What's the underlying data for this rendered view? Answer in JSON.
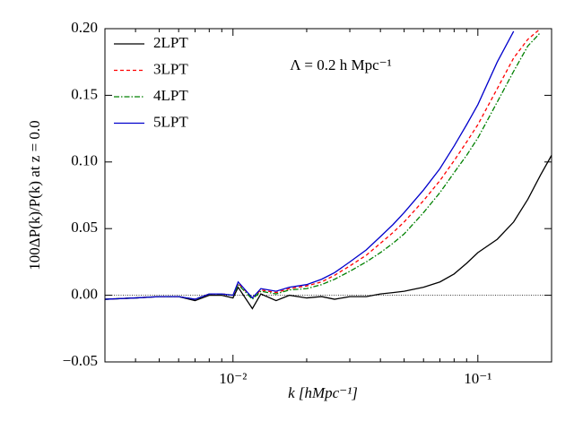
{
  "chart_data": {
    "type": "line",
    "x_label": "k [hMpc⁻¹]",
    "y_label": "100ΔP(k)/P(k) at z = 0.0",
    "annotation": "Λ = 0.2 h Mpc⁻¹",
    "log_x": true,
    "legend": "upper left",
    "hline": 0,
    "xlim": [
      0.003,
      0.2
    ],
    "ylim": [
      -0.05,
      0.2
    ],
    "xticks": [
      {
        "value": 0.01,
        "label": "10⁻²"
      },
      {
        "value": 0.1,
        "label": "10⁻¹"
      }
    ],
    "x_minor_ticks": [
      0.003,
      0.004,
      0.005,
      0.006,
      0.007,
      0.008,
      0.009,
      0.02,
      0.03,
      0.04,
      0.05,
      0.06,
      0.07,
      0.08,
      0.09,
      0.2
    ],
    "yticks": [
      {
        "value": -0.05,
        "label": "−0.05"
      },
      {
        "value": 0,
        "label": "0.00"
      },
      {
        "value": 0.05,
        "label": "0.05"
      },
      {
        "value": 0.1,
        "label": "0.10"
      },
      {
        "value": 0.15,
        "label": "0.15"
      },
      {
        "value": 0.2,
        "label": "0.20"
      }
    ],
    "x": [
      0.003,
      0.004,
      0.005,
      0.006,
      0.007,
      0.008,
      0.009,
      0.01,
      0.0105,
      0.012,
      0.013,
      0.015,
      0.017,
      0.02,
      0.023,
      0.026,
      0.03,
      0.035,
      0.04,
      0.045,
      0.05,
      0.06,
      0.07,
      0.08,
      0.09,
      0.1,
      0.12,
      0.14,
      0.16,
      0.18,
      0.2
    ],
    "series": [
      {
        "name": "2LPT",
        "color": "#000000",
        "dash": "none",
        "values": [
          -0.003,
          -0.002,
          -0.001,
          -0.001,
          -0.004,
          0.0,
          0.0,
          -0.002,
          0.006,
          -0.01,
          0.001,
          -0.004,
          0.0,
          -0.002,
          -0.001,
          -0.003,
          -0.001,
          -0.001,
          0.001,
          0.002,
          0.003,
          0.006,
          0.01,
          0.016,
          0.024,
          0.032,
          0.042,
          0.055,
          0.072,
          0.09,
          0.105
        ]
      },
      {
        "name": "3LPT",
        "color": "#ff0000",
        "dash": "4 3",
        "values": [
          -0.003,
          -0.002,
          -0.001,
          -0.001,
          -0.003,
          0.001,
          0.001,
          0.0,
          0.009,
          -0.002,
          0.004,
          0.002,
          0.005,
          0.007,
          0.01,
          0.015,
          0.022,
          0.03,
          0.039,
          0.047,
          0.055,
          0.071,
          0.086,
          0.101,
          0.115,
          0.128,
          0.155,
          0.178,
          0.192,
          0.2,
          null
        ]
      },
      {
        "name": "4LPT",
        "color": "#008000",
        "dash": "6 2 1.5 2",
        "values": [
          -0.003,
          -0.002,
          -0.001,
          -0.001,
          -0.003,
          0.001,
          0.001,
          0.0,
          0.008,
          -0.003,
          0.003,
          0.001,
          0.004,
          0.005,
          0.008,
          0.012,
          0.018,
          0.025,
          0.032,
          0.039,
          0.046,
          0.062,
          0.077,
          0.092,
          0.105,
          0.118,
          0.145,
          0.168,
          0.187,
          0.197,
          null
        ]
      },
      {
        "name": "5LPT",
        "color": "#0000cc",
        "dash": "none",
        "values": [
          -0.003,
          -0.002,
          -0.001,
          -0.001,
          -0.003,
          0.001,
          0.001,
          0.0,
          0.01,
          -0.002,
          0.005,
          0.003,
          0.006,
          0.008,
          0.012,
          0.017,
          0.025,
          0.034,
          0.044,
          0.053,
          0.062,
          0.079,
          0.095,
          0.112,
          0.128,
          0.143,
          0.175,
          0.198,
          null,
          null,
          null
        ]
      }
    ]
  }
}
